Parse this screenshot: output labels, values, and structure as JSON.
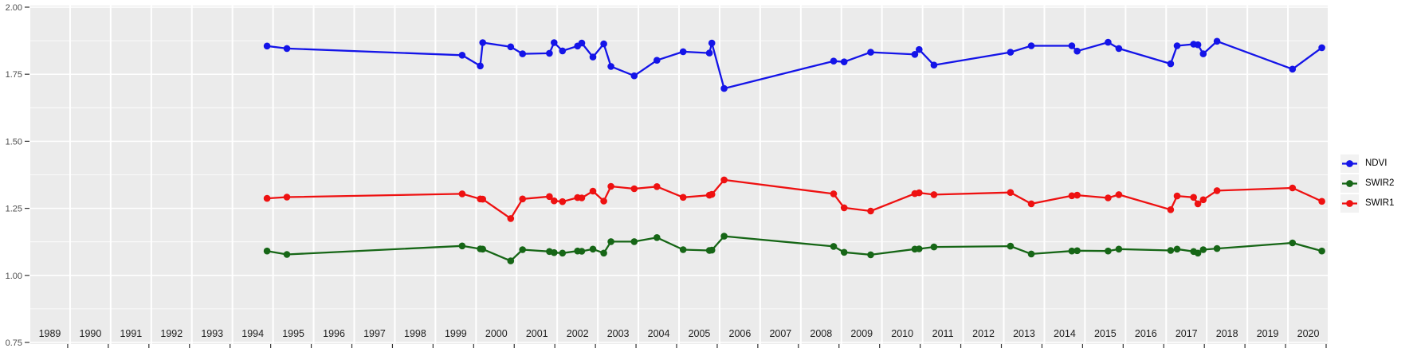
{
  "chart_data": {
    "type": "line",
    "title": "",
    "xlabel": "",
    "ylabel": "",
    "x_unit": "decimal_year",
    "x_axis": {
      "facet_years": [
        1989,
        1990,
        1991,
        1992,
        1993,
        1994,
        1995,
        1996,
        1997,
        1998,
        1999,
        2000,
        2001,
        2002,
        2003,
        2004,
        2005,
        2006,
        2007,
        2008,
        2009,
        2010,
        2011,
        2012,
        2013,
        2014,
        2015,
        2016,
        2017,
        2018,
        2019,
        2020
      ]
    },
    "y_axis": {
      "range": [
        0.75,
        2.0
      ],
      "major_step": 0.25,
      "minor_step": 0.125,
      "tick_labels": [
        "2.00",
        "1.75",
        "1.50",
        "1.25",
        "1.00",
        "0.75"
      ]
    },
    "grid": true,
    "panel_bg": "#EBEBEB",
    "grid_color": "#FFFFFF",
    "axis_text_color": "#4D4D4D",
    "facet_label_color": "#1F1F1F",
    "legend": {
      "position": "right",
      "key_bg": "#F2F2F2",
      "entries": [
        {
          "label": "NDVI",
          "color": "#1414E8"
        },
        {
          "label": "SWIR2",
          "color": "#166616"
        },
        {
          "label": "SWIR1",
          "color": "#EE1111"
        }
      ]
    },
    "x": [
      1994.9,
      1995.32,
      1999.68,
      2000.05,
      2000.12,
      2000.9,
      2001.1,
      2001.85,
      2001.98,
      2002.08,
      2002.5,
      2002.62,
      2002.93,
      2003.1,
      2003.3,
      2003.95,
      2004.45,
      2005.05,
      2005.78,
      2005.85,
      2006.06,
      2008.85,
      2009.01,
      2009.75,
      2010.85,
      2010.97,
      2011.25,
      2013.12,
      2013.7,
      2014.7,
      2014.85,
      2015.58,
      2015.88,
      2017.06,
      2017.24,
      2017.7,
      2017.82,
      2017.97,
      2018.22,
      2020.06,
      2020.88
    ],
    "series": [
      {
        "name": "NDVI",
        "color": "#1414E8",
        "values": [
          1.855,
          1.846,
          1.821,
          1.781,
          1.868,
          1.852,
          1.826,
          1.828,
          1.868,
          1.837,
          1.855,
          1.866,
          1.814,
          1.863,
          1.779,
          1.744,
          1.802,
          1.834,
          1.829,
          1.866,
          1.697,
          1.799,
          1.796,
          1.832,
          1.824,
          1.842,
          1.784,
          1.832,
          1.856,
          1.856,
          1.836,
          1.869,
          1.846,
          1.789,
          1.856,
          1.862,
          1.86,
          1.826,
          1.873,
          1.769,
          1.849
        ]
      },
      {
        "name": "SWIR2",
        "color": "#166616",
        "values": [
          1.091,
          1.078,
          1.11,
          1.099,
          1.098,
          1.054,
          1.096,
          1.089,
          1.085,
          1.083,
          1.091,
          1.09,
          1.098,
          1.083,
          1.126,
          1.126,
          1.141,
          1.096,
          1.093,
          1.094,
          1.146,
          1.108,
          1.086,
          1.077,
          1.098,
          1.099,
          1.106,
          1.109,
          1.08,
          1.091,
          1.092,
          1.091,
          1.098,
          1.093,
          1.098,
          1.089,
          1.083,
          1.096,
          1.1,
          1.121,
          1.091
        ]
      },
      {
        "name": "SWIR1",
        "color": "#EE1111",
        "values": [
          1.287,
          1.292,
          1.304,
          1.285,
          1.284,
          1.212,
          1.285,
          1.294,
          1.278,
          1.275,
          1.29,
          1.289,
          1.314,
          1.277,
          1.332,
          1.323,
          1.331,
          1.291,
          1.299,
          1.302,
          1.356,
          1.304,
          1.252,
          1.24,
          1.305,
          1.308,
          1.301,
          1.309,
          1.267,
          1.297,
          1.299,
          1.289,
          1.301,
          1.245,
          1.296,
          1.291,
          1.267,
          1.282,
          1.316,
          1.326,
          1.276
        ]
      }
    ]
  }
}
